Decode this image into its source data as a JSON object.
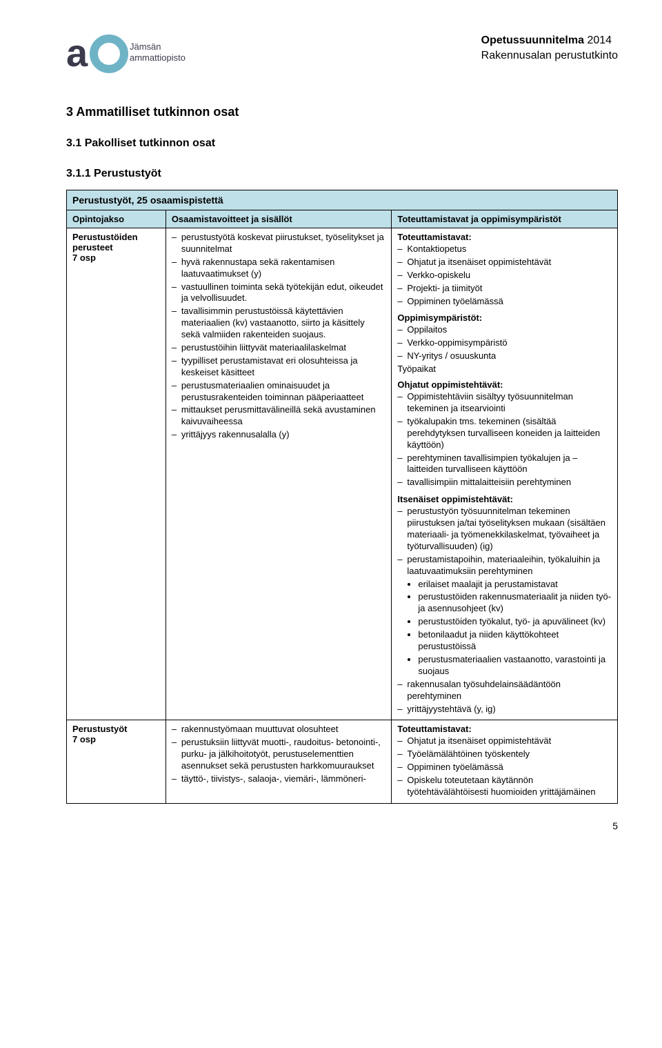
{
  "colors": {
    "table_header_bg": "#bfe0e8",
    "border": "#000000",
    "logo_dark": "#3b3b4d",
    "logo_light": "#6fb3c6"
  },
  "header": {
    "title_bold": "Opetussuunnitelma",
    "title_year": "2014",
    "subtitle": "Rakennusalan perustutkinto",
    "logo_alt": "Jämsän ammattiopisto"
  },
  "h2": "3  Ammatilliset tutkinnon osat",
  "h3a": "3.1  Pakolliset tutkinnon osat",
  "h3b": "3.1.1  Perustustyöt",
  "table": {
    "course_title": "Perustustyöt,  25 osaamispistettä",
    "col_headers": [
      "Opintojakso",
      "Osaamistavoitteet ja sisällöt",
      "Toteuttamistavat ja oppimisympäristöt"
    ],
    "col_widths": [
      "18%",
      "41%",
      "41%"
    ],
    "rows": [
      {
        "label_lines": [
          "Perustustöiden",
          "perusteet",
          "7 osp"
        ],
        "goals": [
          "perustustyötä koskevat piirustukset, työselitykset ja suunnitelmat",
          "hyvä rakennustapa sekä rakentamisen laatuvaatimukset (y)",
          "vastuullinen toiminta sekä työtekijän edut, oikeudet ja velvollisuudet.",
          "tavallisimmin perustustöissä käytettävien materiaalien (kv) vastaanotto, siirto ja käsittely sekä valmiiden rakenteiden suojaus.",
          "perustustöihin liittyvät materiaalilaskelmat",
          "tyypilliset perustamistavat eri olosuhteissa ja keskeiset käsitteet",
          "perustusmateriaalien ominaisuudet ja perustusrakenteiden toiminnan pääperiaatteet",
          "mittaukset perusmittavälineillä sekä avustaminen kaivuvaiheessa",
          "yrittäjyys rakennusalalla (y)"
        ],
        "impl": {
          "totetavat_label": "Toteuttamistavat:",
          "totetavat": [
            "Kontaktiopetus",
            "Ohjatut ja itsenäiset oppimistehtävät",
            "Verkko-opiskelu",
            "Projekti- ja tiimityöt",
            "Oppiminen työelämässä"
          ],
          "ymp_label": "Oppimisympäristöt:",
          "ymp": [
            "Oppilaitos",
            "Verkko-oppimisympäristö",
            "NY-yritys / osuuskunta"
          ],
          "tyopaikat": "Työpaikat",
          "ohjatut_label": "Ohjatut oppimistehtävät:",
          "ohjatut": [
            "Oppimistehtäviin sisältyy työsuunnitelman tekeminen ja itsearviointi",
            "työkalupakin tms. tekeminen (sisältää perehdytyksen turvalliseen koneiden ja laitteiden käyttöön)",
            "perehtyminen tavallisimpien työkalujen ja – laitteiden turvalliseen käyttöön",
            "tavallisimpiin  mittalaitteisiin perehtyminen"
          ],
          "itsen_label": "Itsenäiset oppimistehtävät:",
          "itsen": [
            "perustustyön työsuunnitelman tekeminen piirustuksen ja/tai työselityksen mukaan (sisältäen materiaali- ja työmenekkilaskelmat, työvaiheet ja työturvallisuuden) (ig)",
            "perustamistapoihin, materiaaleihin, työkaluihin ja laatuvaatimuksiin perehtyminen"
          ],
          "itsen_sub": [
            "erilaiset maalajit ja perustamistavat",
            "perustustöiden rakennusmateriaalit ja niiden työ- ja asennusohjeet (kv)",
            "perustustöiden työkalut, työ- ja apuvälineet (kv)",
            "betonilaadut ja niiden käyttökohteet perustustöissä",
            "perustusmateriaalien vastaanotto, varastointi ja suojaus"
          ],
          "itsen_tail": [
            "rakennusalan työsuhdelainsäädäntöön perehtyminen",
            "yrittäjyystehtävä (y, ig)"
          ]
        }
      },
      {
        "label_lines": [
          "Perustustyöt",
          "7 osp"
        ],
        "goals": [
          "rakennustyömaan muuttuvat olosuhteet",
          "perustuksiin liittyvät muotti-, raudoitus- betonointi-, purku- ja jälkihoitotyöt, perustuselementtien asennukset sekä perustusten harkkomuuraukset",
          "täyttö-, tiivistys-, salaoja-, viemäri-, lämmöneri-"
        ],
        "impl": {
          "totetavat_label": "Toteuttamistavat:",
          "totetavat": [
            "Ohjatut ja itsenäiset oppimistehtävät",
            "Työelämälähtöinen työskentely",
            "Oppiminen työelämässä",
            "Opiskelu toteutetaan käytännön työtehtävälähtöisesti huomioiden yrittäjämäinen"
          ]
        }
      }
    ]
  },
  "page_number": "5"
}
